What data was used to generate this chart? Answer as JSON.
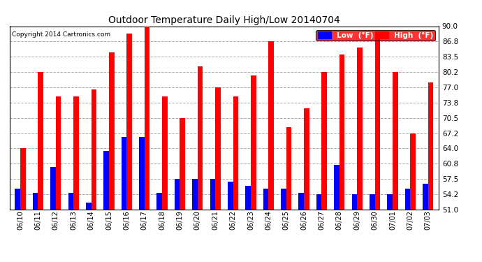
{
  "title": "Outdoor Temperature Daily High/Low 20140704",
  "copyright": "Copyright 2014 Cartronics.com",
  "legend_low": "Low  (°F)",
  "legend_high": "High  (°F)",
  "low_color": "#0000ff",
  "high_color": "#ff0000",
  "background_color": "#ffffff",
  "grid_color": "#aaaaaa",
  "yticks": [
    51.0,
    54.2,
    57.5,
    60.8,
    64.0,
    67.2,
    70.5,
    73.8,
    77.0,
    80.2,
    83.5,
    86.8,
    90.0
  ],
  "ylim": [
    51.0,
    90.0
  ],
  "categories": [
    "06/10",
    "06/11",
    "06/12",
    "06/13",
    "06/14",
    "06/15",
    "06/16",
    "06/17",
    "06/18",
    "06/19",
    "06/20",
    "06/21",
    "06/22",
    "06/23",
    "06/24",
    "06/25",
    "06/26",
    "06/27",
    "06/28",
    "06/29",
    "06/30",
    "07/01",
    "07/02",
    "07/03"
  ],
  "highs": [
    64.0,
    80.2,
    75.0,
    75.0,
    76.5,
    84.5,
    88.5,
    90.0,
    75.0,
    70.5,
    81.5,
    77.0,
    75.0,
    79.5,
    86.8,
    68.5,
    72.5,
    80.2,
    84.0,
    85.5,
    88.0,
    80.2,
    67.2,
    78.0
  ],
  "lows": [
    55.5,
    54.5,
    60.0,
    54.5,
    52.5,
    63.5,
    66.5,
    66.5,
    54.5,
    57.5,
    57.5,
    57.5,
    57.0,
    56.0,
    55.5,
    55.5,
    54.5,
    54.2,
    60.5,
    54.2,
    54.2,
    54.2,
    55.5,
    56.5
  ]
}
